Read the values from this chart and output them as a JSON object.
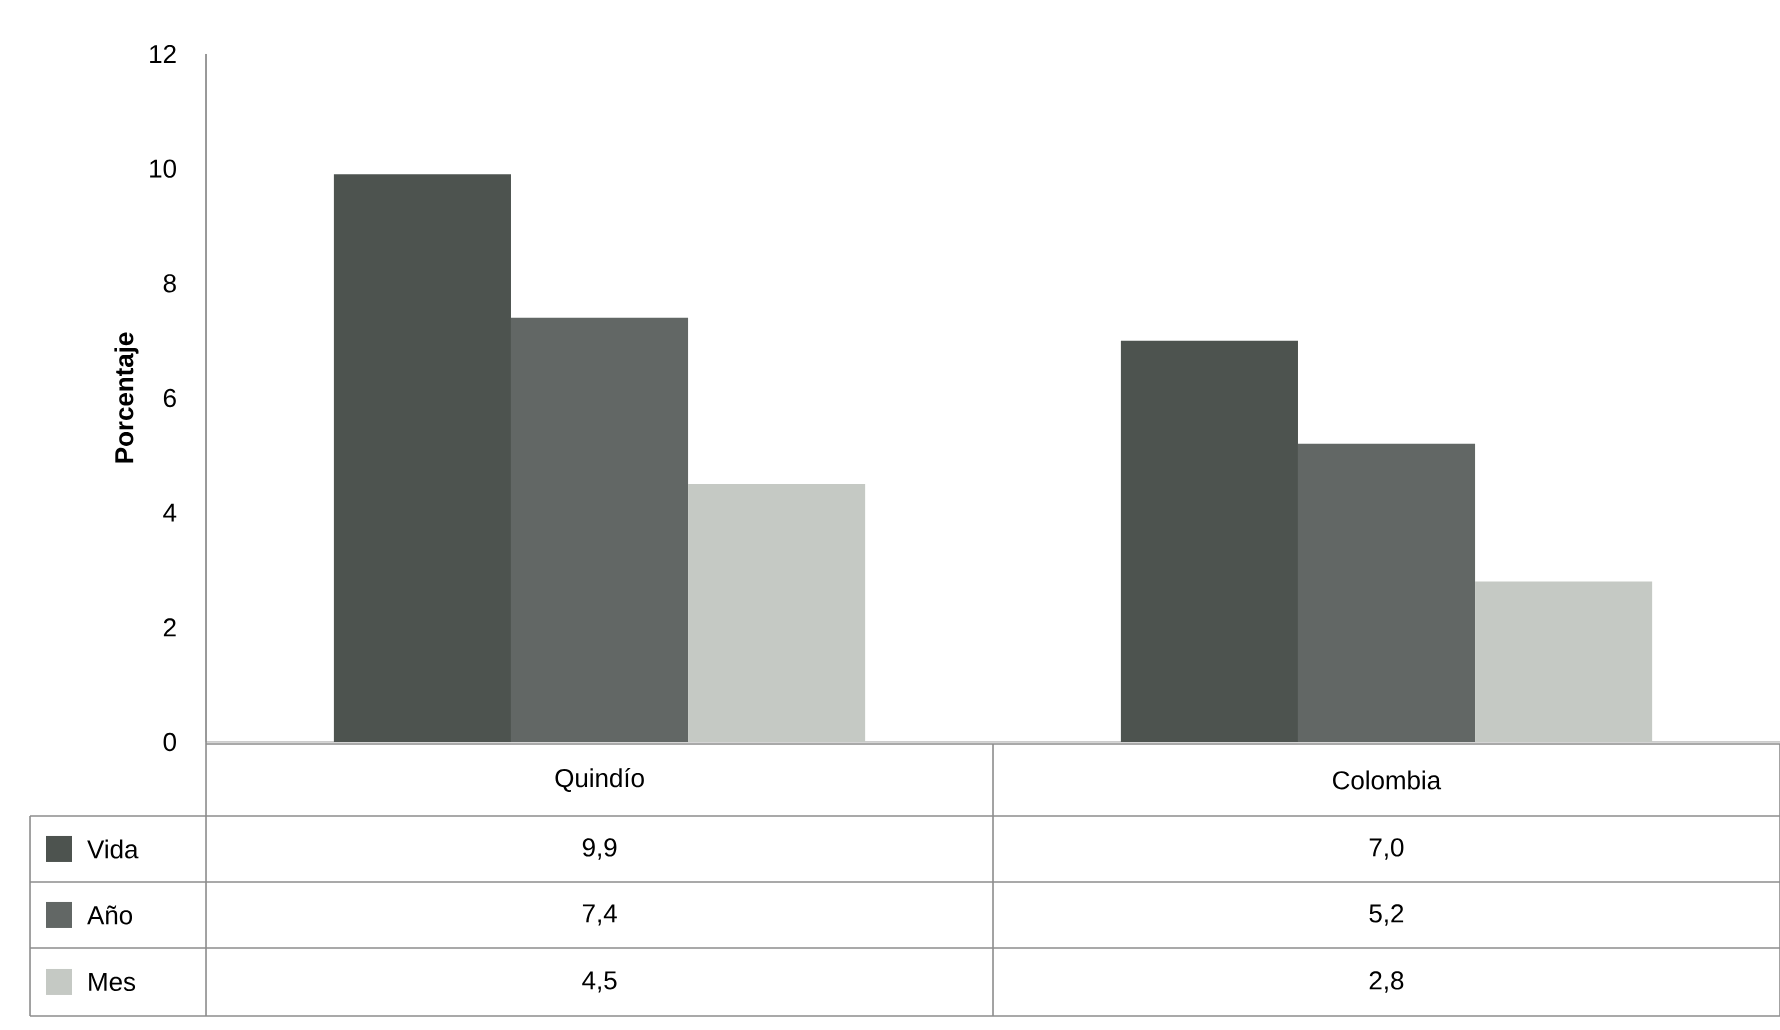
{
  "chart_data": {
    "type": "bar",
    "ylabel": "Porcentaje",
    "categories": [
      "Quindío",
      "Colombia"
    ],
    "series": [
      {
        "name": "Vida",
        "color": "#4d534f",
        "values": [
          9.9,
          7.0
        ],
        "value_labels": [
          "9,9",
          "7,0"
        ]
      },
      {
        "name": "Año",
        "color": "#626765",
        "values": [
          7.4,
          5.2
        ],
        "value_labels": [
          "7,4",
          "5,2"
        ]
      },
      {
        "name": "Mes",
        "color": "#c5c9c4",
        "values": [
          4.5,
          2.8
        ],
        "value_labels": [
          "4,5",
          "2,8"
        ]
      }
    ],
    "ylim": [
      0,
      12
    ],
    "yticks": [
      0,
      2,
      4,
      6,
      8,
      10,
      12
    ],
    "legend": "bottom",
    "grid": false
  }
}
